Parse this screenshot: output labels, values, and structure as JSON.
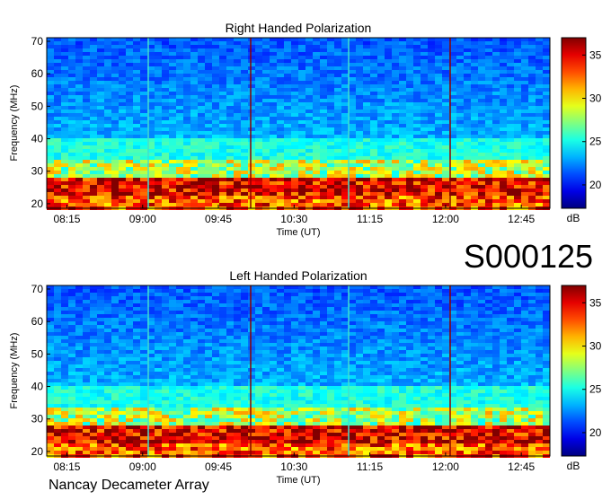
{
  "chart_data": [
    {
      "type": "spectrogram",
      "title": "Right Handed Polarization",
      "x_label": "Time (UT)",
      "y_label": "Frequency (MHz)",
      "xlim": [
        "08:03",
        "13:02"
      ],
      "xticks": [
        "08:15",
        "09:00",
        "09:45",
        "10:30",
        "11:15",
        "12:00",
        "12:45"
      ],
      "ylim": [
        18.6,
        71.1
      ],
      "yticks": [
        20,
        30,
        40,
        50,
        60,
        70
      ],
      "colorbar_label": "dB",
      "clim": [
        17.3,
        37
      ],
      "cticks": [
        20,
        25,
        30,
        35
      ],
      "colormap": "jet"
    },
    {
      "type": "spectrogram",
      "title": "Left Handed Polarization",
      "x_label": "Time (UT)",
      "y_label": "Frequency (MHz)",
      "xlim": [
        "08:03",
        "13:02"
      ],
      "xticks": [
        "08:15",
        "09:00",
        "09:45",
        "10:30",
        "11:15",
        "12:00",
        "12:45"
      ],
      "ylim": [
        18.6,
        71.1
      ],
      "yticks": [
        20,
        30,
        40,
        50,
        60,
        70
      ],
      "colorbar_label": "dB",
      "clim": [
        17.3,
        37
      ],
      "cticks": [
        20,
        25,
        30,
        35
      ],
      "colormap": "jet"
    }
  ],
  "observation_id": "S000125",
  "footer": "Nancay Decameter Array"
}
